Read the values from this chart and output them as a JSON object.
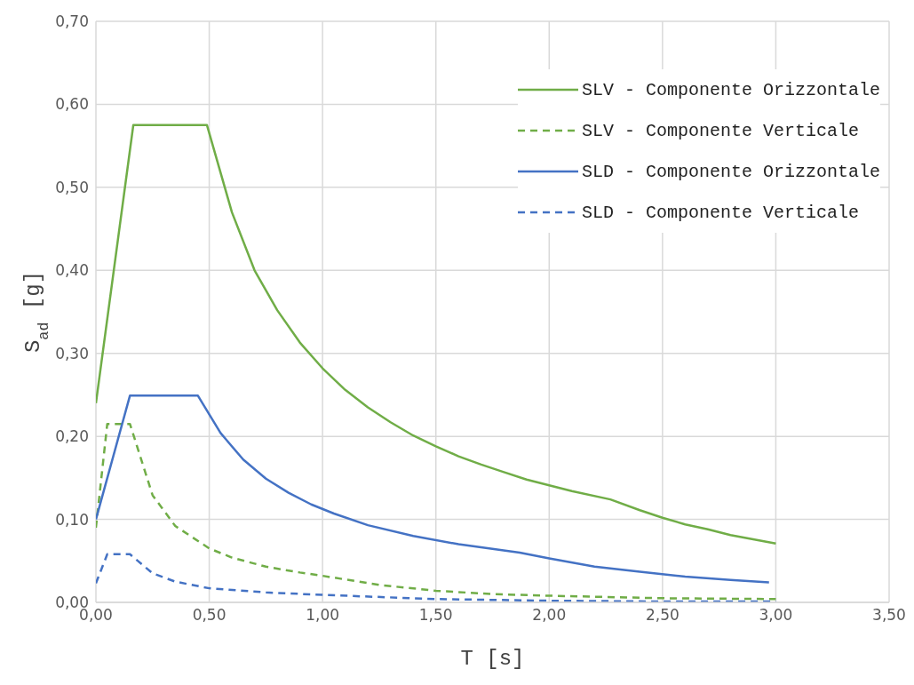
{
  "chart_data": {
    "type": "line",
    "xlabel": "T [s]",
    "ylabel": "S$_{ad}$ [g]",
    "xlim": [
      0,
      3.5
    ],
    "xticks": [
      {
        "value": 0,
        "label": "0,00"
      },
      {
        "value": 0.5,
        "label": "0,50"
      },
      {
        "value": 1,
        "label": "1,00"
      },
      {
        "value": 1.5,
        "label": "1,50"
      },
      {
        "value": 2,
        "label": "2,00"
      },
      {
        "value": 2.5,
        "label": "2,50"
      },
      {
        "value": 3,
        "label": "3,00"
      },
      {
        "value": 3.5,
        "label": "3,50"
      }
    ],
    "ylim": [
      0,
      0.7
    ],
    "yticks": [
      {
        "value": 0,
        "label": "0,00"
      },
      {
        "value": 0.1,
        "label": "0,10"
      },
      {
        "value": 0.2,
        "label": "0,20"
      },
      {
        "value": 0.3,
        "label": "0,30"
      },
      {
        "value": 0.4,
        "label": "0,40"
      },
      {
        "value": 0.5,
        "label": "0,50"
      },
      {
        "value": 0.6,
        "label": "0,60"
      },
      {
        "value": 0.7,
        "label": "0,70"
      }
    ],
    "grid": true,
    "legend": "top right",
    "marker": "none",
    "series": [
      {
        "name": "SLV - Componente Orizzontale",
        "color": "#70ad47",
        "line_style": "solid",
        "x": [
          0,
          0.165,
          0.49,
          0.6,
          0.7,
          0.8,
          0.9,
          1.0,
          1.1,
          1.2,
          1.3,
          1.4,
          1.5,
          1.6,
          1.7,
          1.8,
          1.9,
          2.0,
          2.1,
          2.27,
          2.4,
          2.5,
          2.6,
          2.7,
          2.8,
          2.9,
          3.0
        ],
        "values": [
          0.24,
          0.575,
          0.575,
          0.47,
          0.4,
          0.352,
          0.313,
          0.282,
          0.256,
          0.235,
          0.217,
          0.201,
          0.188,
          0.176,
          0.166,
          0.157,
          0.148,
          0.141,
          0.134,
          0.124,
          0.111,
          0.102,
          0.094,
          0.088,
          0.081,
          0.076,
          0.071
        ]
      },
      {
        "name": "SLV - Componente Verticale",
        "color": "#70ad47",
        "line_style": "dashed",
        "x": [
          0,
          0.05,
          0.15,
          0.25,
          0.35,
          0.5,
          0.6,
          0.75,
          0.9,
          1.0,
          1.25,
          1.5,
          1.75,
          2.0,
          2.5,
          3.0
        ],
        "values": [
          0.09,
          0.215,
          0.215,
          0.129,
          0.092,
          0.065,
          0.054,
          0.043,
          0.036,
          0.032,
          0.021,
          0.014,
          0.01,
          0.008,
          0.005,
          0.004
        ]
      },
      {
        "name": "SLD - Componente Orizzontale",
        "color": "#4472c4",
        "line_style": "solid",
        "x": [
          0,
          0.15,
          0.45,
          0.55,
          0.65,
          0.75,
          0.85,
          0.95,
          1.05,
          1.2,
          1.4,
          1.6,
          1.87,
          2.0,
          2.2,
          2.4,
          2.6,
          2.8,
          2.97
        ],
        "values": [
          0.1,
          0.249,
          0.249,
          0.204,
          0.172,
          0.149,
          0.132,
          0.118,
          0.107,
          0.093,
          0.08,
          0.07,
          0.06,
          0.053,
          0.043,
          0.037,
          0.031,
          0.027,
          0.024
        ]
      },
      {
        "name": "SLD - Componente Verticale",
        "color": "#4472c4",
        "line_style": "dashed",
        "x": [
          0,
          0.05,
          0.15,
          0.25,
          0.35,
          0.5,
          0.75,
          1.0,
          1.5,
          2.0,
          2.5,
          3.0
        ],
        "values": [
          0.023,
          0.058,
          0.058,
          0.035,
          0.025,
          0.017,
          0.012,
          0.009,
          0.004,
          0.002,
          0.001,
          0.001
        ]
      }
    ]
  }
}
